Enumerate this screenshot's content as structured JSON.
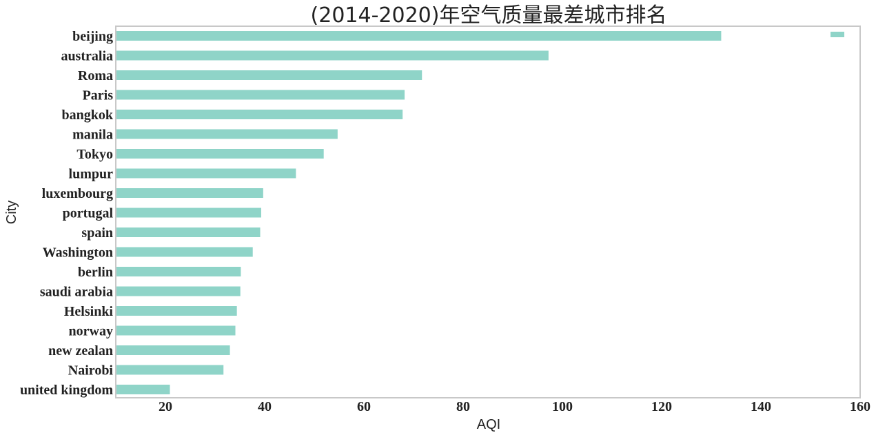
{
  "chart_data": {
    "type": "bar",
    "orientation": "horizontal",
    "title": "(2014-2020)年空气质量最差城市排名",
    "xlabel": "AQI",
    "ylabel": "City",
    "xlim": [
      10,
      160
    ],
    "xticks": [
      20,
      40,
      60,
      80,
      100,
      120,
      140,
      160
    ],
    "grid": false,
    "legend": "top-right",
    "bar_color": "#8fd4c8",
    "categories": [
      "beijing",
      "australia",
      "Roma",
      "Paris",
      "bangkok",
      "manila",
      "Tokyo",
      "lumpur",
      "luxembourg",
      "portugal",
      "spain",
      "Washington",
      "berlin",
      "saudi arabia",
      "Helsinki",
      "norway",
      "new zealan",
      "Nairobi",
      "united kingdom"
    ],
    "values": [
      132,
      97.2,
      71.7,
      68.2,
      67.8,
      54.7,
      51.9,
      46.3,
      39.7,
      39.3,
      39.1,
      37.6,
      35.2,
      35.1,
      34.4,
      34.1,
      33.0,
      31.7,
      20.9
    ]
  }
}
